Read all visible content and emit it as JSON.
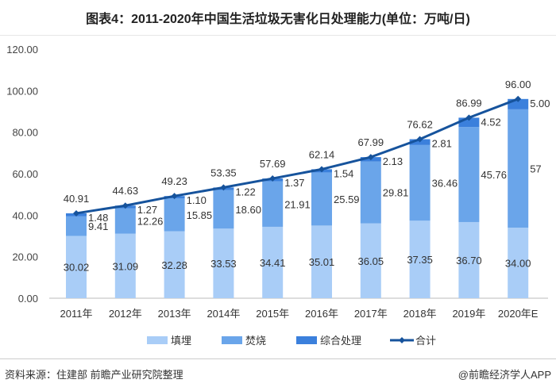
{
  "title": "图表4：2011-2020年中国生活垃圾无害化日处理能力(单位：万吨/日)",
  "source": "资料来源：住建部 前瞻产业研究院整理",
  "brand": "@前瞻经济学人APP",
  "chart_data": {
    "type": "bar",
    "stacked": true,
    "categories": [
      "2011年",
      "2012年",
      "2013年",
      "2014年",
      "2015年",
      "2016年",
      "2017年",
      "2018年",
      "2019年",
      "2020年E"
    ],
    "ylim": [
      0,
      120
    ],
    "yticks": [
      "0.00",
      "20.00",
      "40.00",
      "60.00",
      "80.00",
      "100.00",
      "120.00"
    ],
    "legend_position": "bottom",
    "series": [
      {
        "name": "填埋",
        "type": "bar",
        "color": "#a9cdf7",
        "values": [
          30.02,
          31.09,
          32.28,
          33.53,
          34.41,
          35.01,
          36.05,
          37.35,
          36.7,
          34.0
        ],
        "labels": [
          "30.02",
          "31.09",
          "32.28",
          "33.53",
          "34.41",
          "35.01",
          "36.05",
          "37.35",
          "36.70",
          "34.00"
        ]
      },
      {
        "name": "焚烧",
        "type": "bar",
        "color": "#6aa5ea",
        "values": [
          9.41,
          12.26,
          15.85,
          18.6,
          21.91,
          25.59,
          29.81,
          36.46,
          45.76,
          57
        ],
        "labels": [
          "9.41",
          "12.26",
          "15.85",
          "18.60",
          "21.91",
          "25.59",
          "29.81",
          "36.46",
          "45.76",
          "57"
        ]
      },
      {
        "name": "综合处理",
        "type": "bar",
        "color": "#3b80dc",
        "values": [
          1.48,
          1.27,
          1.1,
          1.22,
          1.37,
          1.54,
          2.13,
          2.81,
          4.52,
          5.0
        ],
        "labels": [
          "1.48",
          "1.27",
          "1.10",
          "1.22",
          "1.37",
          "1.54",
          "2.13",
          "2.81",
          "4.52",
          "5.00"
        ]
      },
      {
        "name": "合计",
        "type": "line",
        "color": "#16539c",
        "values": [
          40.91,
          44.63,
          49.23,
          53.35,
          57.69,
          62.14,
          67.99,
          76.62,
          86.99,
          96.0
        ],
        "labels": [
          "40.91",
          "44.63",
          "49.23",
          "53.35",
          "57.69",
          "62.14",
          "67.99",
          "76.62",
          "86.99",
          "96.00"
        ]
      }
    ]
  }
}
